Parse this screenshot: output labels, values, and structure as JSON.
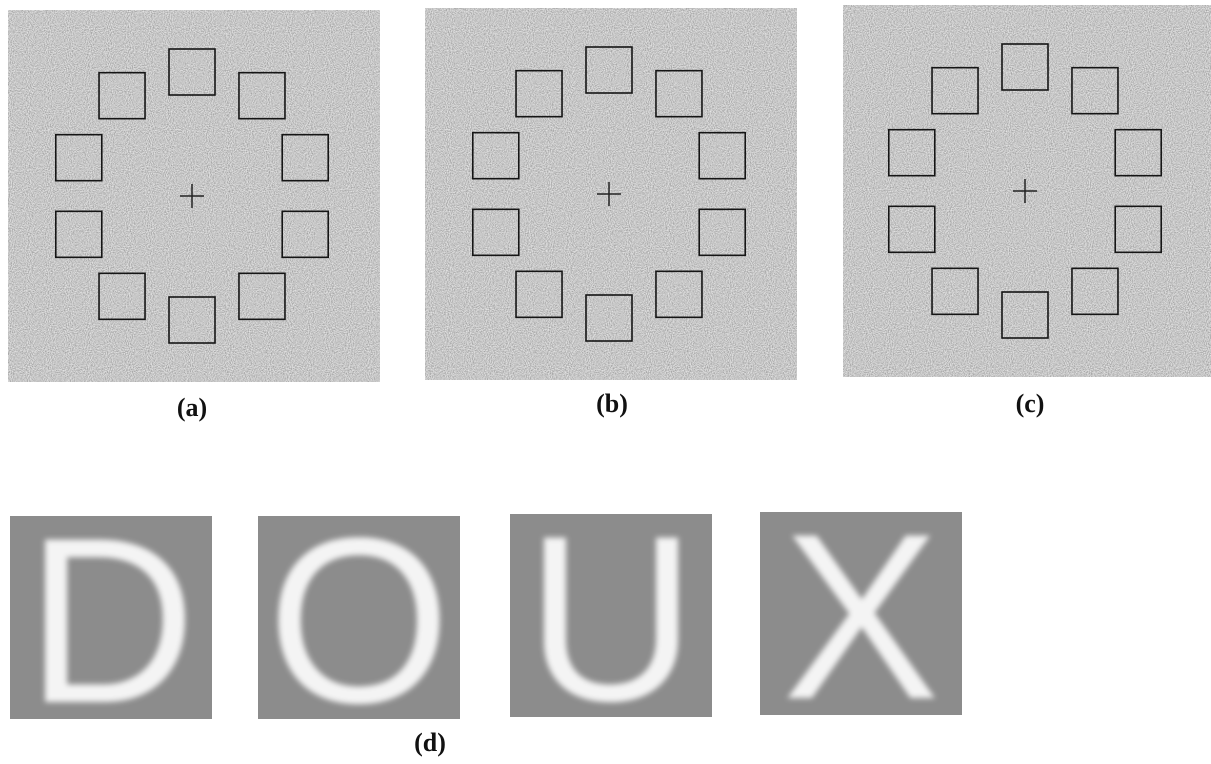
{
  "panels": [
    {
      "label": "(a)"
    },
    {
      "label": "(b)"
    },
    {
      "label": "(c)"
    }
  ],
  "letters": {
    "items": [
      "D",
      "O",
      "U",
      "X"
    ],
    "label": "(d)"
  }
}
